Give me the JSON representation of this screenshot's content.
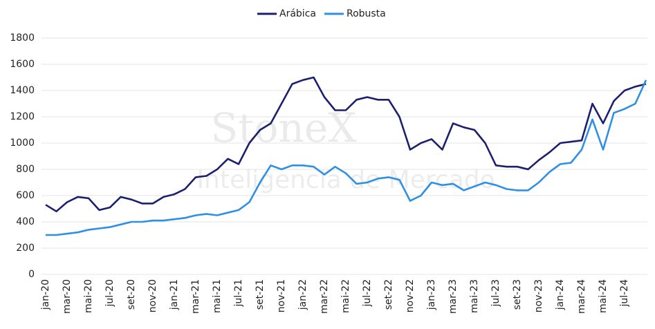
{
  "chart_data": {
    "type": "line",
    "watermark": [
      "StoneX",
      "Inteligencia de Mercado"
    ],
    "categories": [
      "jan-20",
      null,
      "mar-20",
      null,
      "mai-20",
      null,
      "jul-20",
      null,
      "set-20",
      null,
      "nov-20",
      null,
      "jan-21",
      null,
      "mar-21",
      null,
      "mai-21",
      null,
      "jul-21",
      null,
      "set-21",
      null,
      "nov-21",
      null,
      "jan-22",
      null,
      "mar-22",
      null,
      "mai-22",
      null,
      "jul-22",
      null,
      "set-22",
      null,
      "nov-22",
      null,
      "jan-23",
      null,
      "mar-23",
      null,
      "mai-23",
      null,
      "jul-23",
      null,
      "set-23",
      null,
      "nov-23",
      null,
      "jan-24",
      null,
      "mar-24",
      null,
      "mai-24",
      null,
      "jul-24",
      null,
      null
    ],
    "series": [
      {
        "name": "Arábica",
        "color": "#1b1f6e",
        "values": [
          530,
          480,
          550,
          590,
          580,
          490,
          510,
          590,
          570,
          540,
          540,
          590,
          610,
          650,
          740,
          750,
          800,
          880,
          840,
          1000,
          1100,
          1150,
          1300,
          1450,
          1480,
          1500,
          1350,
          1250,
          1250,
          1330,
          1350,
          1330,
          1330,
          1200,
          950,
          1000,
          1030,
          950,
          1150,
          1120,
          1100,
          1000,
          830,
          820,
          820,
          800,
          870,
          930,
          1000,
          1010,
          1020,
          1300,
          1150,
          1320,
          1400,
          1430,
          1450
        ]
      },
      {
        "name": "Robusta",
        "color": "#2e8fe6",
        "values": [
          300,
          300,
          310,
          320,
          340,
          350,
          360,
          380,
          400,
          400,
          410,
          410,
          420,
          430,
          450,
          460,
          450,
          470,
          490,
          550,
          700,
          830,
          800,
          830,
          830,
          820,
          760,
          820,
          770,
          690,
          700,
          730,
          740,
          720,
          560,
          600,
          700,
          680,
          690,
          640,
          670,
          700,
          680,
          650,
          640,
          640,
          700,
          780,
          840,
          850,
          950,
          1180,
          950,
          1230,
          1260,
          1300,
          1480
        ]
      }
    ],
    "ylim": [
      0,
      1800
    ],
    "yticks": [
      0,
      200,
      400,
      600,
      800,
      1000,
      1200,
      1400,
      1600,
      1800
    ],
    "grid": true,
    "legend": "top"
  }
}
